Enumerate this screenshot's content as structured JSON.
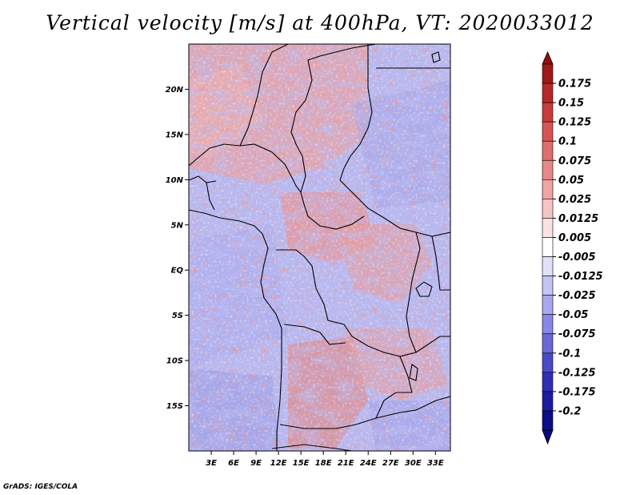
{
  "title": "Vertical velocity [m/s] at 400hPa, VT: 2020033012",
  "credit": "GrADS: IGES/COLA",
  "map": {
    "lat_ticks": [
      "20N",
      "15N",
      "10N",
      "5N",
      "EQ",
      "5S",
      "10S",
      "15S"
    ],
    "lon_ticks": [
      "3E",
      "6E",
      "9E",
      "12E",
      "15E",
      "18E",
      "21E",
      "24E",
      "27E",
      "30E",
      "33E"
    ],
    "lat_values": [
      20,
      15,
      10,
      5,
      0,
      -5,
      -10,
      -15
    ],
    "lon_values": [
      3,
      6,
      9,
      12,
      15,
      18,
      21,
      24,
      27,
      30,
      33
    ],
    "lat_range": [
      -20,
      25
    ],
    "lon_range": [
      0,
      35
    ]
  },
  "colorbar": {
    "labels": [
      "0.175",
      "0.15",
      "0.125",
      "0.1",
      "0.075",
      "0.05",
      "0.025",
      "0.0125",
      "0.005",
      "-0.005",
      "-0.0125",
      "-0.025",
      "-0.05",
      "-0.075",
      "-0.1",
      "-0.125",
      "-0.175",
      "-0.2"
    ],
    "colors": [
      "#a01818",
      "#b82828",
      "#c83c3c",
      "#d85454",
      "#e06e6e",
      "#e88888",
      "#f0a4a4",
      "#f6c4c4",
      "#fbe2e2",
      "#ffffff",
      "#e0e0fb",
      "#c4c4f4",
      "#a8a8ee",
      "#8888e4",
      "#6868d8",
      "#4a4ac8",
      "#3030b4",
      "#1c1ca0",
      "#0c0c88"
    ],
    "top_arrow_color": "#8c1010",
    "bottom_arrow_color": "#0a0a80"
  }
}
